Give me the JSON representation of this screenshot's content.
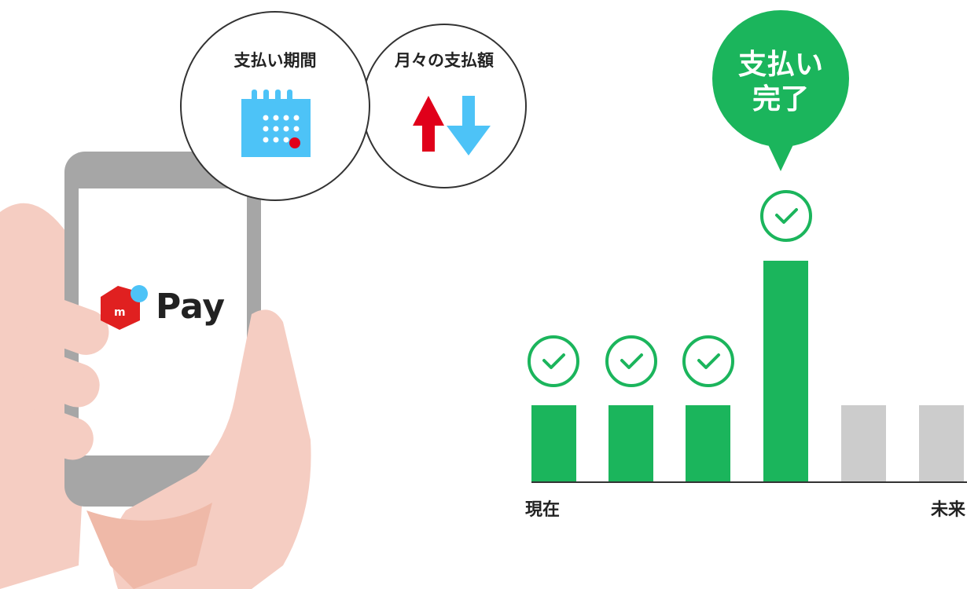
{
  "features": {
    "period": "支払い期間",
    "monthly": "月々の支払額"
  },
  "phone": {
    "brand": "Pay"
  },
  "bubble": {
    "lines": [
      "支払い",
      "完了"
    ]
  },
  "timeline": {
    "start": "現在",
    "end": "未来"
  }
}
